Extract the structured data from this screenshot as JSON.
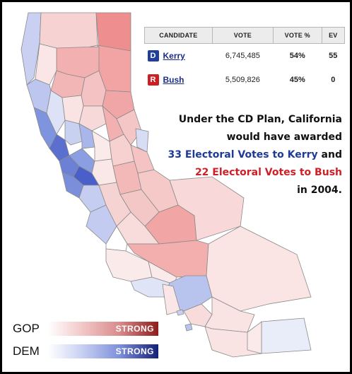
{
  "table": {
    "headers": [
      "CANDIDATE",
      "VOTE",
      "VOTE %",
      "EV"
    ],
    "rows": [
      {
        "badge": "D",
        "name": "Kerry",
        "vote": "6,745,485",
        "pct": "54%",
        "ev": "55"
      },
      {
        "badge": "R",
        "name": "Bush",
        "vote": "5,509,826",
        "pct": "45%",
        "ev": "0"
      }
    ]
  },
  "note": {
    "line1": "Under the CD Plan, California",
    "line2": "would have awarded",
    "line3": "33 Electoral Votes to Kerry",
    "line3_suffix": " and",
    "line4": "22 Electoral Votes to Bush",
    "line5": "in 2004."
  },
  "legend": {
    "gop_label": "GOP",
    "gop_bar": "STRONG",
    "dem_label": "DEM",
    "dem_bar": "STRONG"
  },
  "colors": {
    "dem_strong": "#1f3f9a",
    "rep_strong": "#cc1f24",
    "kerry_text": "#1d3a99",
    "bush_text": "#cf1f26"
  }
}
